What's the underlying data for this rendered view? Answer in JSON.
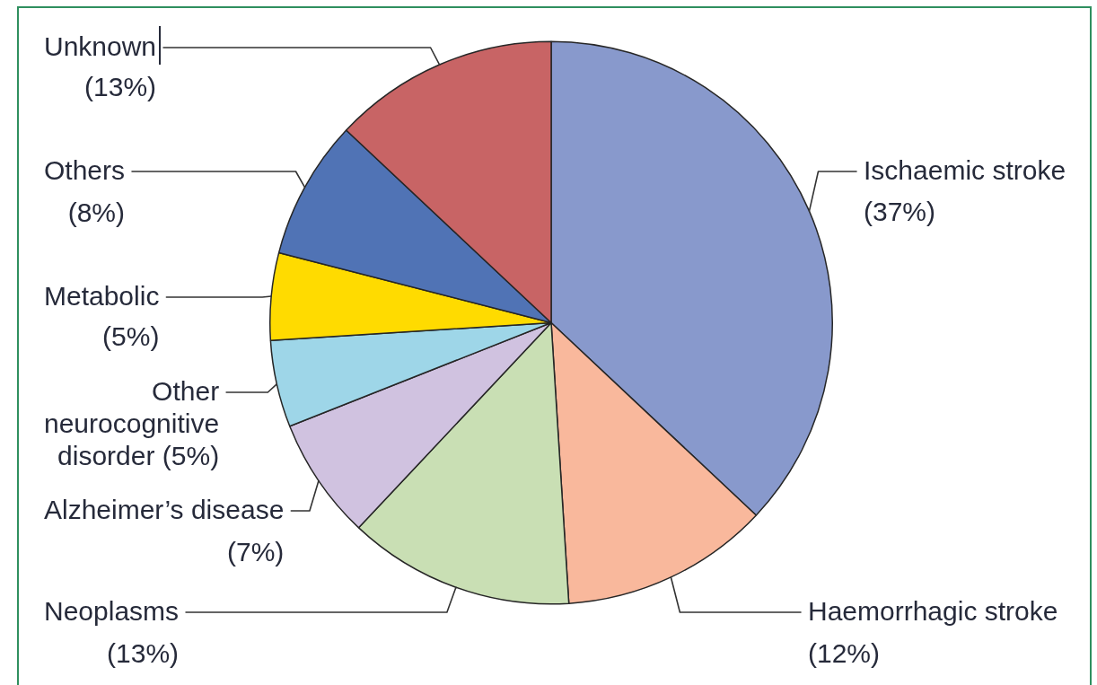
{
  "chart_data": {
    "type": "pie",
    "categories": [
      "Ischaemic stroke",
      "Haemorrhagic stroke",
      "Neoplasms",
      "Alzheimer’s disease",
      "Other neurocognitive disorder",
      "Metabolic",
      "Others",
      "Unknown"
    ],
    "values": [
      37,
      12,
      13,
      7,
      5,
      5,
      8,
      13
    ],
    "colors": [
      "#8899cc",
      "#f9b89c",
      "#c9dfb4",
      "#d0c2e0",
      "#9ed6e8",
      "#ffdb00",
      "#5073b5",
      "#c86465"
    ],
    "value_labels": [
      "(37%)",
      "(12%)",
      "(13%)",
      "(7%)",
      "(5%)",
      "(5%)",
      "(8%)",
      "(13%)"
    ]
  }
}
